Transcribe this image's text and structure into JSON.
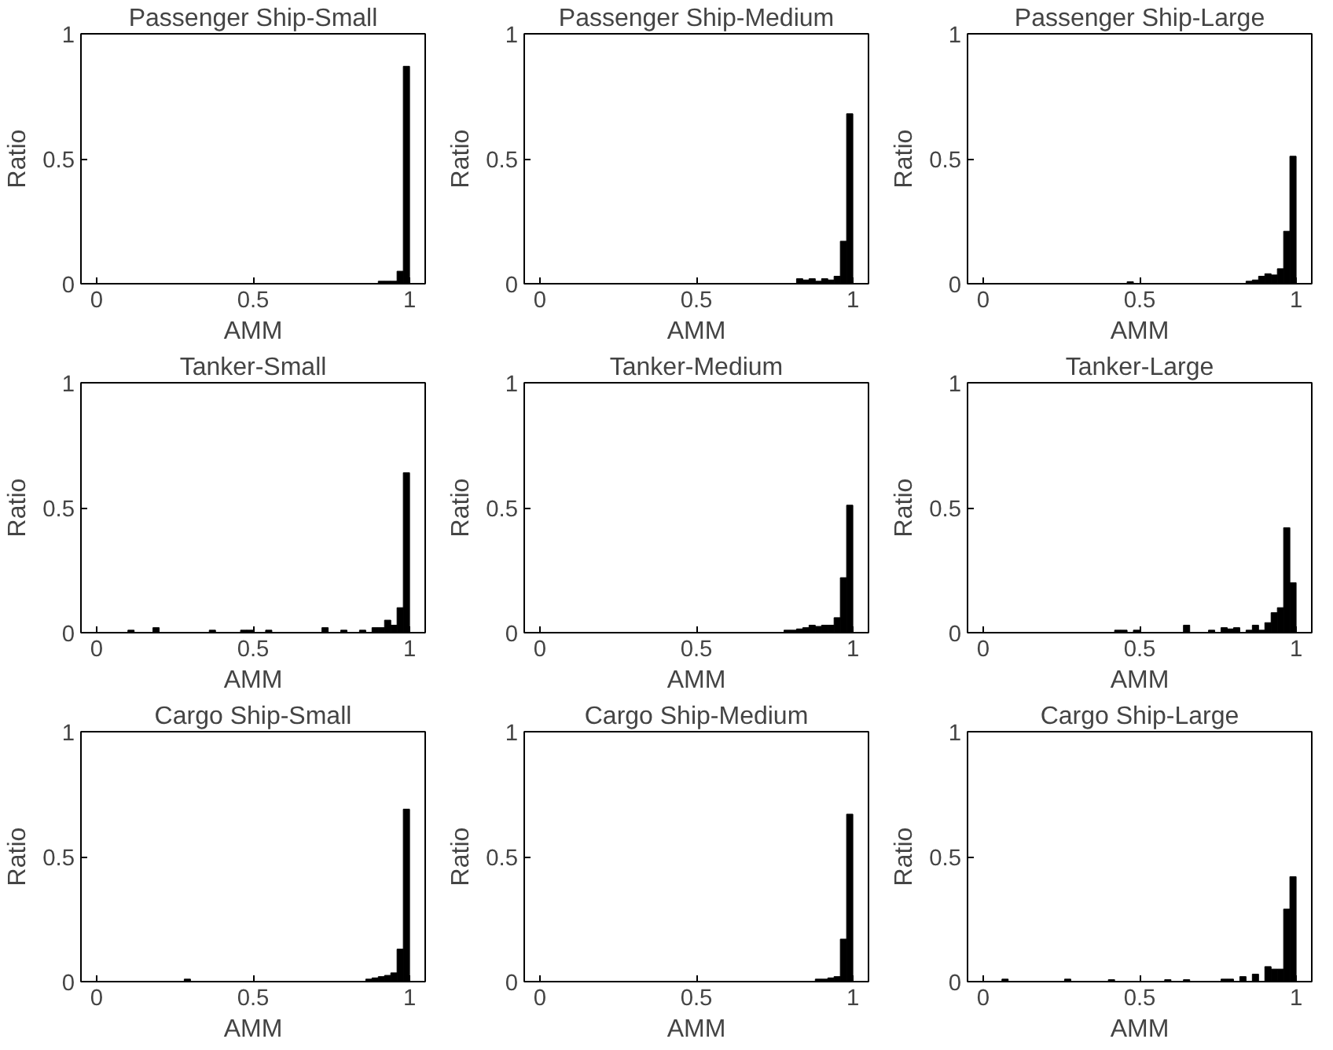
{
  "chart_data": [
    {
      "type": "histogram",
      "title": "Passenger Ship-Small",
      "xlabel": "AMM",
      "ylabel": "Ratio",
      "color": "#000000",
      "xlim": [
        -0.05,
        1.05
      ],
      "ylim": [
        0,
        1
      ],
      "xticks": [
        0,
        0.5,
        1
      ],
      "yticks": [
        0,
        0.5,
        1
      ],
      "grid": false,
      "bins": [
        0,
        0.02,
        0.04,
        0.06,
        0.08,
        0.1,
        0.12,
        0.14,
        0.16,
        0.18,
        0.2,
        0.22,
        0.24,
        0.26,
        0.28,
        0.3,
        0.32,
        0.34,
        0.36,
        0.38,
        0.4,
        0.42,
        0.44,
        0.46,
        0.48,
        0.5,
        0.52,
        0.54,
        0.56,
        0.58,
        0.6,
        0.62,
        0.64,
        0.66,
        0.68,
        0.7,
        0.72,
        0.74,
        0.76,
        0.78,
        0.8,
        0.82,
        0.84,
        0.86,
        0.88,
        0.9,
        0.92,
        0.94,
        0.96,
        0.98,
        1
      ],
      "values": [
        0,
        0,
        0,
        0,
        0,
        0,
        0,
        0,
        0,
        0,
        0,
        0,
        0,
        0,
        0,
        0,
        0,
        0,
        0,
        0,
        0,
        0,
        0,
        0,
        0,
        0,
        0,
        0,
        0,
        0,
        0,
        0,
        0,
        0,
        0,
        0,
        0,
        0,
        0,
        0,
        0,
        0,
        0,
        0,
        0,
        0.01,
        0.01,
        0.01,
        0.05,
        0.87
      ]
    },
    {
      "type": "histogram",
      "title": "Passenger Ship-Medium",
      "xlabel": "AMM",
      "ylabel": "Ratio",
      "color": "#000000",
      "xlim": [
        -0.05,
        1.05
      ],
      "ylim": [
        0,
        1
      ],
      "xticks": [
        0,
        0.5,
        1
      ],
      "yticks": [
        0,
        0.5,
        1
      ],
      "grid": false,
      "bins": [
        0,
        0.02,
        0.04,
        0.06,
        0.08,
        0.1,
        0.12,
        0.14,
        0.16,
        0.18,
        0.2,
        0.22,
        0.24,
        0.26,
        0.28,
        0.3,
        0.32,
        0.34,
        0.36,
        0.38,
        0.4,
        0.42,
        0.44,
        0.46,
        0.48,
        0.5,
        0.52,
        0.54,
        0.56,
        0.58,
        0.6,
        0.62,
        0.64,
        0.66,
        0.68,
        0.7,
        0.72,
        0.74,
        0.76,
        0.78,
        0.8,
        0.82,
        0.84,
        0.86,
        0.88,
        0.9,
        0.92,
        0.94,
        0.96,
        0.98,
        1
      ],
      "values": [
        0,
        0,
        0,
        0,
        0,
        0,
        0,
        0,
        0,
        0,
        0,
        0,
        0,
        0,
        0,
        0,
        0,
        0,
        0,
        0,
        0,
        0,
        0,
        0,
        0,
        0,
        0,
        0,
        0,
        0,
        0,
        0,
        0,
        0,
        0,
        0,
        0,
        0,
        0,
        0,
        0,
        0.02,
        0.015,
        0.02,
        0.01,
        0.02,
        0.015,
        0.03,
        0.17,
        0.68
      ]
    },
    {
      "type": "histogram",
      "title": "Passenger Ship-Large",
      "xlabel": "AMM",
      "ylabel": "Ratio",
      "color": "#000000",
      "xlim": [
        -0.05,
        1.05
      ],
      "ylim": [
        0,
        1
      ],
      "xticks": [
        0,
        0.5,
        1
      ],
      "yticks": [
        0,
        0.5,
        1
      ],
      "grid": false,
      "bins": [
        0,
        0.02,
        0.04,
        0.06,
        0.08,
        0.1,
        0.12,
        0.14,
        0.16,
        0.18,
        0.2,
        0.22,
        0.24,
        0.26,
        0.28,
        0.3,
        0.32,
        0.34,
        0.36,
        0.38,
        0.4,
        0.42,
        0.44,
        0.46,
        0.48,
        0.5,
        0.52,
        0.54,
        0.56,
        0.58,
        0.6,
        0.62,
        0.64,
        0.66,
        0.68,
        0.7,
        0.72,
        0.74,
        0.76,
        0.78,
        0.8,
        0.82,
        0.84,
        0.86,
        0.88,
        0.9,
        0.92,
        0.94,
        0.96,
        0.98,
        1
      ],
      "values": [
        0,
        0,
        0,
        0,
        0,
        0,
        0,
        0,
        0,
        0,
        0,
        0,
        0,
        0,
        0,
        0,
        0,
        0,
        0,
        0,
        0,
        0,
        0,
        0.008,
        0,
        0,
        0,
        0,
        0,
        0,
        0,
        0,
        0,
        0,
        0,
        0,
        0,
        0,
        0,
        0,
        0,
        0,
        0.01,
        0.015,
        0.03,
        0.04,
        0.035,
        0.06,
        0.21,
        0.51
      ]
    },
    {
      "type": "histogram",
      "title": "Tanker-Small",
      "xlabel": "AMM",
      "ylabel": "Ratio",
      "color": "#000000",
      "xlim": [
        -0.05,
        1.05
      ],
      "ylim": [
        0,
        1
      ],
      "xticks": [
        0,
        0.5,
        1
      ],
      "yticks": [
        0,
        0.5,
        1
      ],
      "grid": false,
      "bins": [
        0,
        0.02,
        0.04,
        0.06,
        0.08,
        0.1,
        0.12,
        0.14,
        0.16,
        0.18,
        0.2,
        0.22,
        0.24,
        0.26,
        0.28,
        0.3,
        0.32,
        0.34,
        0.36,
        0.38,
        0.4,
        0.42,
        0.44,
        0.46,
        0.48,
        0.5,
        0.52,
        0.54,
        0.56,
        0.58,
        0.6,
        0.62,
        0.64,
        0.66,
        0.68,
        0.7,
        0.72,
        0.74,
        0.76,
        0.78,
        0.8,
        0.82,
        0.84,
        0.86,
        0.88,
        0.9,
        0.92,
        0.94,
        0.96,
        0.98,
        1
      ],
      "values": [
        0,
        0,
        0,
        0,
        0,
        0.01,
        0,
        0,
        0,
        0.02,
        0,
        0,
        0,
        0,
        0,
        0,
        0,
        0,
        0.01,
        0,
        0,
        0,
        0,
        0.01,
        0.01,
        0,
        0,
        0.01,
        0,
        0,
        0,
        0,
        0,
        0,
        0,
        0,
        0.02,
        0,
        0,
        0.01,
        0,
        0,
        0.01,
        0,
        0.02,
        0.02,
        0.05,
        0.03,
        0.1,
        0.64
      ]
    },
    {
      "type": "histogram",
      "title": "Tanker-Medium",
      "xlabel": "AMM",
      "ylabel": "Ratio",
      "color": "#000000",
      "xlim": [
        -0.05,
        1.05
      ],
      "ylim": [
        0,
        1
      ],
      "xticks": [
        0,
        0.5,
        1
      ],
      "yticks": [
        0,
        0.5,
        1
      ],
      "grid": false,
      "bins": [
        0,
        0.02,
        0.04,
        0.06,
        0.08,
        0.1,
        0.12,
        0.14,
        0.16,
        0.18,
        0.2,
        0.22,
        0.24,
        0.26,
        0.28,
        0.3,
        0.32,
        0.34,
        0.36,
        0.38,
        0.4,
        0.42,
        0.44,
        0.46,
        0.48,
        0.5,
        0.52,
        0.54,
        0.56,
        0.58,
        0.6,
        0.62,
        0.64,
        0.66,
        0.68,
        0.7,
        0.72,
        0.74,
        0.76,
        0.78,
        0.8,
        0.82,
        0.84,
        0.86,
        0.88,
        0.9,
        0.92,
        0.94,
        0.96,
        0.98,
        1
      ],
      "values": [
        0,
        0,
        0,
        0,
        0,
        0,
        0,
        0,
        0,
        0,
        0,
        0,
        0,
        0,
        0,
        0,
        0,
        0,
        0,
        0,
        0,
        0,
        0,
        0,
        0,
        0,
        0,
        0,
        0,
        0,
        0,
        0,
        0,
        0,
        0,
        0,
        0,
        0,
        0,
        0.01,
        0.01,
        0.015,
        0.02,
        0.03,
        0.025,
        0.03,
        0.03,
        0.06,
        0.22,
        0.51
      ]
    },
    {
      "type": "histogram",
      "title": "Tanker-Large",
      "xlabel": "AMM",
      "ylabel": "Ratio",
      "color": "#000000",
      "xlim": [
        -0.05,
        1.05
      ],
      "ylim": [
        0,
        1
      ],
      "xticks": [
        0,
        0.5,
        1
      ],
      "yticks": [
        0,
        0.5,
        1
      ],
      "grid": false,
      "bins": [
        0,
        0.02,
        0.04,
        0.06,
        0.08,
        0.1,
        0.12,
        0.14,
        0.16,
        0.18,
        0.2,
        0.22,
        0.24,
        0.26,
        0.28,
        0.3,
        0.32,
        0.34,
        0.36,
        0.38,
        0.4,
        0.42,
        0.44,
        0.46,
        0.48,
        0.5,
        0.52,
        0.54,
        0.56,
        0.58,
        0.6,
        0.62,
        0.64,
        0.66,
        0.68,
        0.7,
        0.72,
        0.74,
        0.76,
        0.78,
        0.8,
        0.82,
        0.84,
        0.86,
        0.88,
        0.9,
        0.92,
        0.94,
        0.96,
        0.98,
        1
      ],
      "values": [
        0,
        0,
        0,
        0,
        0,
        0,
        0,
        0,
        0,
        0,
        0,
        0,
        0,
        0,
        0,
        0,
        0,
        0,
        0,
        0,
        0,
        0.01,
        0.01,
        0,
        0.01,
        0,
        0,
        0,
        0,
        0,
        0,
        0,
        0.03,
        0,
        0,
        0,
        0.01,
        0,
        0.02,
        0.015,
        0.02,
        0,
        0.01,
        0.03,
        0.01,
        0.04,
        0.08,
        0.1,
        0.42,
        0.2
      ]
    },
    {
      "type": "histogram",
      "title": "Cargo Ship-Small",
      "xlabel": "AMM",
      "ylabel": "Ratio",
      "color": "#000000",
      "xlim": [
        -0.05,
        1.05
      ],
      "ylim": [
        0,
        1
      ],
      "xticks": [
        0,
        0.5,
        1
      ],
      "yticks": [
        0,
        0.5,
        1
      ],
      "grid": false,
      "bins": [
        0,
        0.02,
        0.04,
        0.06,
        0.08,
        0.1,
        0.12,
        0.14,
        0.16,
        0.18,
        0.2,
        0.22,
        0.24,
        0.26,
        0.28,
        0.3,
        0.32,
        0.34,
        0.36,
        0.38,
        0.4,
        0.42,
        0.44,
        0.46,
        0.48,
        0.5,
        0.52,
        0.54,
        0.56,
        0.58,
        0.6,
        0.62,
        0.64,
        0.66,
        0.68,
        0.7,
        0.72,
        0.74,
        0.76,
        0.78,
        0.8,
        0.82,
        0.84,
        0.86,
        0.88,
        0.9,
        0.92,
        0.94,
        0.96,
        0.98,
        1
      ],
      "values": [
        0,
        0,
        0,
        0,
        0,
        0,
        0,
        0,
        0,
        0,
        0,
        0,
        0,
        0,
        0.01,
        0,
        0,
        0,
        0,
        0,
        0,
        0,
        0,
        0,
        0,
        0,
        0,
        0,
        0,
        0,
        0,
        0,
        0,
        0,
        0,
        0,
        0,
        0,
        0,
        0,
        0,
        0,
        0,
        0.01,
        0.015,
        0.02,
        0.025,
        0.035,
        0.13,
        0.69
      ]
    },
    {
      "type": "histogram",
      "title": "Cargo Ship-Medium",
      "xlabel": "AMM",
      "ylabel": "Ratio",
      "color": "#000000",
      "xlim": [
        -0.05,
        1.05
      ],
      "ylim": [
        0,
        1
      ],
      "xticks": [
        0,
        0.5,
        1
      ],
      "yticks": [
        0,
        0.5,
        1
      ],
      "grid": false,
      "bins": [
        0,
        0.02,
        0.04,
        0.06,
        0.08,
        0.1,
        0.12,
        0.14,
        0.16,
        0.18,
        0.2,
        0.22,
        0.24,
        0.26,
        0.28,
        0.3,
        0.32,
        0.34,
        0.36,
        0.38,
        0.4,
        0.42,
        0.44,
        0.46,
        0.48,
        0.5,
        0.52,
        0.54,
        0.56,
        0.58,
        0.6,
        0.62,
        0.64,
        0.66,
        0.68,
        0.7,
        0.72,
        0.74,
        0.76,
        0.78,
        0.8,
        0.82,
        0.84,
        0.86,
        0.88,
        0.9,
        0.92,
        0.94,
        0.96,
        0.98,
        1
      ],
      "values": [
        0,
        0,
        0,
        0,
        0,
        0,
        0,
        0,
        0,
        0,
        0,
        0,
        0,
        0,
        0,
        0,
        0,
        0,
        0,
        0,
        0,
        0,
        0,
        0,
        0,
        0,
        0,
        0,
        0,
        0,
        0,
        0,
        0,
        0,
        0,
        0,
        0,
        0,
        0,
        0,
        0,
        0,
        0,
        0,
        0.01,
        0.01,
        0.015,
        0.02,
        0.17,
        0.67
      ]
    },
    {
      "type": "histogram",
      "title": "Cargo Ship-Large",
      "xlabel": "AMM",
      "ylabel": "Ratio",
      "color": "#000000",
      "xlim": [
        -0.05,
        1.05
      ],
      "ylim": [
        0,
        1
      ],
      "xticks": [
        0,
        0.5,
        1
      ],
      "yticks": [
        0,
        0.5,
        1
      ],
      "grid": false,
      "bins": [
        0,
        0.02,
        0.04,
        0.06,
        0.08,
        0.1,
        0.12,
        0.14,
        0.16,
        0.18,
        0.2,
        0.22,
        0.24,
        0.26,
        0.28,
        0.3,
        0.32,
        0.34,
        0.36,
        0.38,
        0.4,
        0.42,
        0.44,
        0.46,
        0.48,
        0.5,
        0.52,
        0.54,
        0.56,
        0.58,
        0.6,
        0.62,
        0.64,
        0.66,
        0.68,
        0.7,
        0.72,
        0.74,
        0.76,
        0.78,
        0.8,
        0.82,
        0.84,
        0.86,
        0.88,
        0.9,
        0.92,
        0.94,
        0.96,
        0.98,
        1
      ],
      "values": [
        0,
        0,
        0,
        0.01,
        0,
        0,
        0,
        0,
        0,
        0,
        0,
        0,
        0,
        0.01,
        0,
        0,
        0,
        0,
        0,
        0,
        0.008,
        0,
        0,
        0,
        0,
        0,
        0,
        0,
        0,
        0.008,
        0,
        0,
        0.008,
        0,
        0,
        0,
        0,
        0,
        0.01,
        0.01,
        0,
        0.02,
        0,
        0.03,
        0,
        0.06,
        0.05,
        0.05,
        0.29,
        0.42
      ]
    }
  ]
}
